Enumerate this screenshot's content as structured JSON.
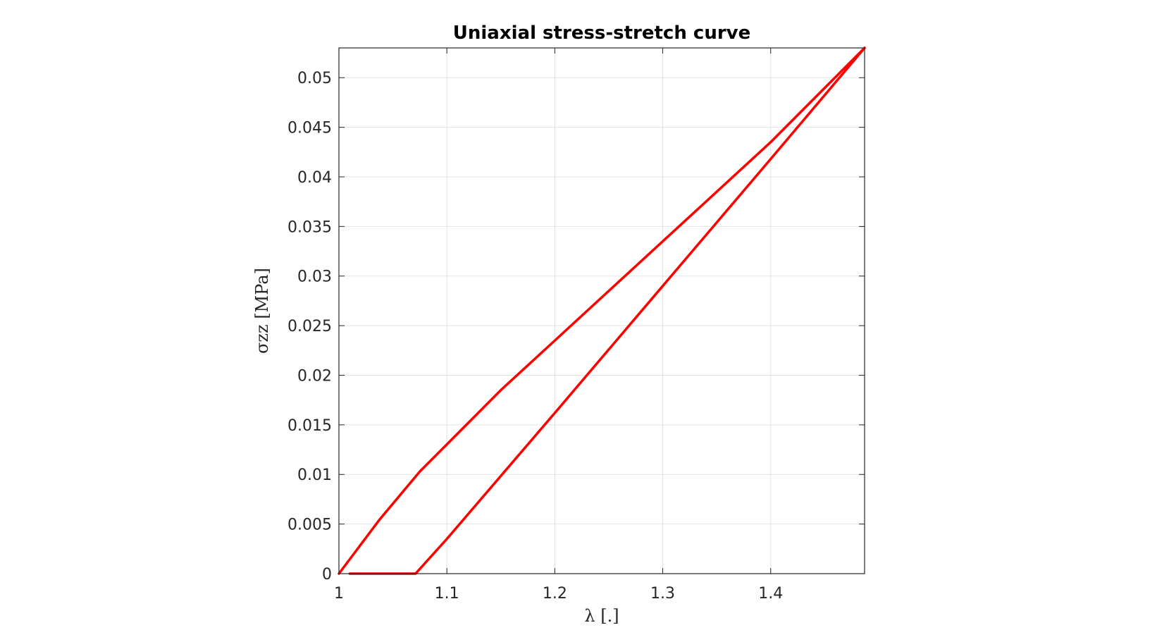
{
  "chart_data": {
    "type": "line",
    "title": "Uniaxial stress-stretch curve",
    "xlabel": "λ [.]",
    "ylabel": "σzz [MPa]",
    "xlim": [
      1,
      1.487
    ],
    "ylim": [
      0,
      0.053
    ],
    "xticks": [
      1,
      1.1,
      1.2,
      1.3,
      1.4
    ],
    "xtick_labels": [
      "1",
      "1.1",
      "1.2",
      "1.3",
      "1.4"
    ],
    "yticks": [
      0,
      0.005,
      0.01,
      0.015,
      0.02,
      0.025,
      0.03,
      0.035,
      0.04,
      0.045,
      0.05
    ],
    "ytick_labels": [
      "0",
      "0.005",
      "0.01",
      "0.015",
      "0.02",
      "0.025",
      "0.03",
      "0.035",
      "0.04",
      "0.045",
      "0.05"
    ],
    "grid": true,
    "series": [
      {
        "color": "#ff0000",
        "x": [
          1.0,
          1.038,
          1.075,
          1.15,
          1.2,
          1.3,
          1.4,
          1.487
        ],
        "y": [
          0.0,
          0.0055,
          0.0103,
          0.0185,
          0.0235,
          0.0335,
          0.0435,
          0.053
        ]
      },
      {
        "color": "#ff0000",
        "x": [
          1.487,
          1.4,
          1.3,
          1.2,
          1.1,
          1.071,
          1.01
        ],
        "y": [
          0.053,
          0.0418,
          0.029,
          0.0162,
          0.0035,
          0.0,
          0.0
        ]
      }
    ]
  }
}
